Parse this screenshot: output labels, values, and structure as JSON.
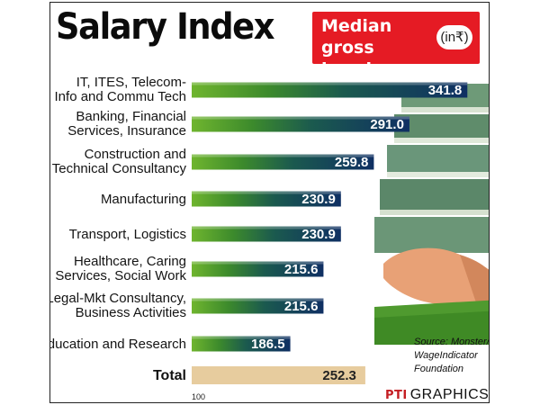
{
  "title": "Salary Index",
  "subtitle": "Median gross hourly salary",
  "unit": "(in₹)",
  "source": "Source: Monster/ WageIndicator Foundation",
  "credit": {
    "logo": "PTI",
    "text": "GRAPHICS"
  },
  "colors": {
    "accent": "#e51b24",
    "bar_green": "#5aa829",
    "bar_blue": "#123a6c",
    "total_bar": "#e7cc9e"
  },
  "chart_data": {
    "type": "bar",
    "orientation": "horizontal",
    "title": "Salary Index",
    "subtitle": "Median gross hourly salary (in₹)",
    "categories": [
      "IT, ITES, Telecom-Info and Commu Tech",
      "Banking, Financial Services, Insurance",
      "Construction and Technical Consultancy",
      "Manufacturing",
      "Transport, Logistics",
      "Healthcare, Caring Services, Social Work",
      "Legal-Mkt Consultancy, Business Activities",
      "Education and Research"
    ],
    "label_lines": [
      [
        "IT, ITES, Telecom-",
        "Info and Commu Tech"
      ],
      [
        "Banking, Financial",
        "Services, Insurance"
      ],
      [
        "Construction and",
        "Technical Consultancy"
      ],
      [
        "Manufacturing"
      ],
      [
        "Transport, Logistics"
      ],
      [
        "Healthcare, Caring",
        "Services, Social Work"
      ],
      [
        "Legal-Mkt Consultancy,",
        "Business Activities"
      ],
      [
        "Education and Research"
      ]
    ],
    "values": [
      341.8,
      291.0,
      259.8,
      230.9,
      230.9,
      215.6,
      215.6,
      186.5
    ],
    "value_labels": [
      "341.8",
      "291.0",
      "259.8",
      "230.9",
      "230.9",
      "215.6",
      "215.6",
      "186.5"
    ],
    "total": {
      "label": "Total",
      "value": 252.3,
      "value_label": "252.3"
    },
    "axis_min_label": "100",
    "xlim": [
      100,
      355
    ]
  }
}
